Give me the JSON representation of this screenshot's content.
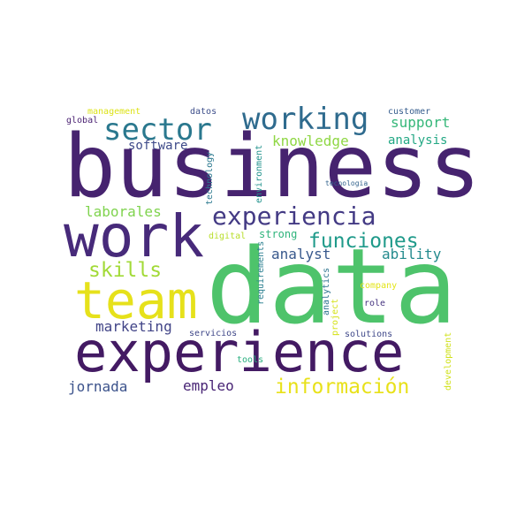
{
  "word_cloud": {
    "words": [
      {
        "text": "data",
        "color": "#4ec36b"
      },
      {
        "text": "business",
        "color": "#46236f"
      },
      {
        "text": "work",
        "color": "#472a7a"
      },
      {
        "text": "experience",
        "color": "#431a63"
      },
      {
        "text": "team",
        "color": "#e6e11b"
      },
      {
        "text": "working",
        "color": "#2f6b8e"
      },
      {
        "text": "sector",
        "color": "#2a788e"
      },
      {
        "text": "experiencia",
        "color": "#433a84"
      },
      {
        "text": "funciones",
        "color": "#1f9a8a"
      },
      {
        "text": "información",
        "color": "#e8e11a"
      },
      {
        "text": "skills",
        "color": "#a2da37"
      },
      {
        "text": "knowledge",
        "color": "#8fd744"
      },
      {
        "text": "support",
        "color": "#35b779"
      },
      {
        "text": "analysis",
        "color": "#23a884"
      },
      {
        "text": "software",
        "color": "#3e4a89"
      },
      {
        "text": "laborales",
        "color": "#7fd34e"
      },
      {
        "text": "analyst",
        "color": "#38588c"
      },
      {
        "text": "ability",
        "color": "#238a8d"
      },
      {
        "text": "marketing",
        "color": "#414487"
      },
      {
        "text": "jornada",
        "color": "#3b528b"
      },
      {
        "text": "empleo",
        "color": "#482475"
      },
      {
        "text": "strong",
        "color": "#2fb47c"
      },
      {
        "text": "management",
        "color": "#dde318"
      },
      {
        "text": "datos",
        "color": "#3d4e8a"
      },
      {
        "text": "customer",
        "color": "#365d8d"
      },
      {
        "text": "global",
        "color": "#481f71"
      },
      {
        "text": "technology",
        "color": "#2a788e"
      },
      {
        "text": "environment",
        "color": "#20928c"
      },
      {
        "text": "tecnologia",
        "color": "#33638d"
      },
      {
        "text": "digital",
        "color": "#b8de29"
      },
      {
        "text": "requirements",
        "color": "#287d8e"
      },
      {
        "text": "analytics",
        "color": "#2c728e"
      },
      {
        "text": "project",
        "color": "#d5e21a"
      },
      {
        "text": "company",
        "color": "#e3e418"
      },
      {
        "text": "role",
        "color": "#463480"
      },
      {
        "text": "servicios",
        "color": "#3f4788"
      },
      {
        "text": "solutions",
        "color": "#3f4889"
      },
      {
        "text": "tools",
        "color": "#29af7f"
      },
      {
        "text": "development",
        "color": "#d0e11c"
      }
    ]
  }
}
